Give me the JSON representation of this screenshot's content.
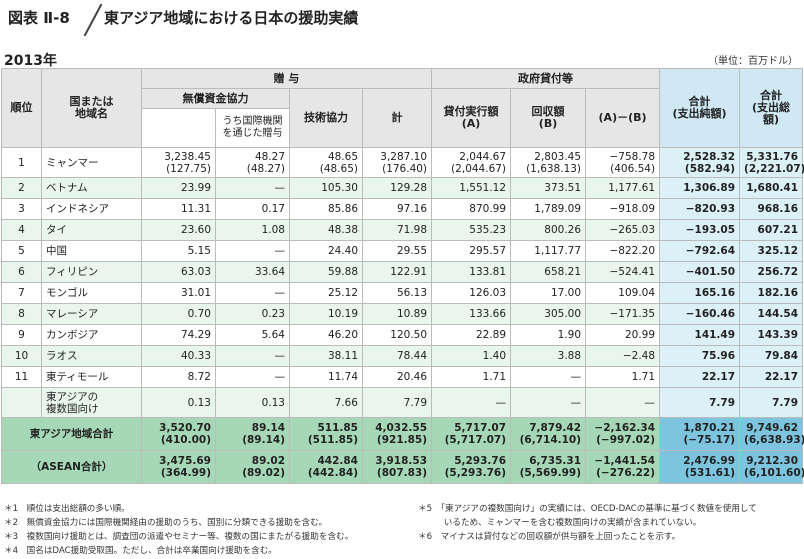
{
  "header": {
    "figure_tag": "図表 Ⅱ-8",
    "title": "東アジア地域における日本の援助実績"
  },
  "year": "2013年",
  "unit": "（単位：百万ドル）",
  "columns": {
    "rank": "順位",
    "country": "国または\n地域名",
    "grant_group": "贈 与",
    "loan_group": "政府貸付等",
    "grant_aid": "無償資金協力",
    "via_intl": "うち国際機関\nを通じた贈与",
    "tech": "技術協力",
    "total": "計",
    "loan_exec": "貸付実行額\n(A)",
    "recovery": "回収額\n(B)",
    "a_minus_b": "(A)－(B)",
    "net": "合計\n(支出純額)",
    "gross": "合計\n(支出総額)"
  },
  "rows": [
    {
      "rank": "1",
      "country": "ミャンマー",
      "grant_aid": "3,238.45\n(127.75)",
      "via_intl": "48.27\n(48.27)",
      "tech": "48.65\n(48.65)",
      "total": "3,287.10\n(176.40)",
      "loan_exec": "2,044.67\n(2,044.67)",
      "recovery": "2,803.45\n(1,638.13)",
      "a_minus_b": "−758.78\n(406.54)",
      "net": "2,528.32\n(582.94)",
      "gross": "5,331.76\n(2,221.07)"
    },
    {
      "rank": "2",
      "country": "ベトナム",
      "grant_aid": "23.99",
      "via_intl": "—",
      "tech": "105.30",
      "total": "129.28",
      "loan_exec": "1,551.12",
      "recovery": "373.51",
      "a_minus_b": "1,177.61",
      "net": "1,306.89",
      "gross": "1,680.41"
    },
    {
      "rank": "3",
      "country": "インドネシア",
      "grant_aid": "11.31",
      "via_intl": "0.17",
      "tech": "85.86",
      "total": "97.16",
      "loan_exec": "870.99",
      "recovery": "1,789.09",
      "a_minus_b": "−918.09",
      "net": "−820.93",
      "gross": "968.16"
    },
    {
      "rank": "4",
      "country": "タイ",
      "grant_aid": "23.60",
      "via_intl": "1.08",
      "tech": "48.38",
      "total": "71.98",
      "loan_exec": "535.23",
      "recovery": "800.26",
      "a_minus_b": "−265.03",
      "net": "−193.05",
      "gross": "607.21"
    },
    {
      "rank": "5",
      "country": "中国",
      "grant_aid": "5.15",
      "via_intl": "—",
      "tech": "24.40",
      "total": "29.55",
      "loan_exec": "295.57",
      "recovery": "1,117.77",
      "a_minus_b": "−822.20",
      "net": "−792.64",
      "gross": "325.12"
    },
    {
      "rank": "6",
      "country": "フィリピン",
      "grant_aid": "63.03",
      "via_intl": "33.64",
      "tech": "59.88",
      "total": "122.91",
      "loan_exec": "133.81",
      "recovery": "658.21",
      "a_minus_b": "−524.41",
      "net": "−401.50",
      "gross": "256.72"
    },
    {
      "rank": "7",
      "country": "モンゴル",
      "grant_aid": "31.01",
      "via_intl": "—",
      "tech": "25.12",
      "total": "56.13",
      "loan_exec": "126.03",
      "recovery": "17.00",
      "a_minus_b": "109.04",
      "net": "165.16",
      "gross": "182.16"
    },
    {
      "rank": "8",
      "country": "マレーシア",
      "grant_aid": "0.70",
      "via_intl": "0.23",
      "tech": "10.19",
      "total": "10.89",
      "loan_exec": "133.66",
      "recovery": "305.00",
      "a_minus_b": "−171.35",
      "net": "−160.46",
      "gross": "144.54"
    },
    {
      "rank": "9",
      "country": "カンボジア",
      "grant_aid": "74.29",
      "via_intl": "5.64",
      "tech": "46.20",
      "total": "120.50",
      "loan_exec": "22.89",
      "recovery": "1.90",
      "a_minus_b": "20.99",
      "net": "141.49",
      "gross": "143.39"
    },
    {
      "rank": "10",
      "country": "ラオス",
      "grant_aid": "40.33",
      "via_intl": "—",
      "tech": "38.11",
      "total": "78.44",
      "loan_exec": "1.40",
      "recovery": "3.88",
      "a_minus_b": "−2.48",
      "net": "75.96",
      "gross": "79.84"
    },
    {
      "rank": "11",
      "country": "東ティモール",
      "grant_aid": "8.72",
      "via_intl": "—",
      "tech": "11.74",
      "total": "20.46",
      "loan_exec": "1.71",
      "recovery": "—",
      "a_minus_b": "1.71",
      "net": "22.17",
      "gross": "22.17"
    },
    {
      "rank": "",
      "country": "東アジアの\n複数国向け",
      "grant_aid": "0.13",
      "via_intl": "0.13",
      "tech": "7.66",
      "total": "7.79",
      "loan_exec": "—",
      "recovery": "—",
      "a_minus_b": "—",
      "net": "7.79",
      "gross": "7.79"
    }
  ],
  "totals": [
    {
      "label": "東アジア地域合計",
      "grant_aid": "3,520.70\n(410.00)",
      "via_intl": "89.14\n(89.14)",
      "tech": "511.85\n(511.85)",
      "total": "4,032.55\n(921.85)",
      "loan_exec": "5,717.07\n(5,717.07)",
      "recovery": "7,879.42\n(6,714.10)",
      "a_minus_b": "−2,162.34\n(−997.02)",
      "net": "1,870.21\n(−75.17)",
      "gross": "9,749.62\n(6,638.93)"
    },
    {
      "label": "（ASEAN合計）",
      "grant_aid": "3,475.69\n(364.99)",
      "via_intl": "89.02\n(89.02)",
      "tech": "442.84\n(442.84)",
      "total": "3,918.53\n(807.83)",
      "loan_exec": "5,293.76\n(5,293.76)",
      "recovery": "6,735.31\n(5,569.99)",
      "a_minus_b": "−1,441.54\n(−276.22)",
      "net": "2,476.99\n(531.61)",
      "gross": "9,212.30\n(6,101.60)"
    }
  ],
  "footnotes_left": [
    "＊1　順位は支出総額の多い順。",
    "＊2　無償資金協力には国際機関経由の援助のうち、国別に分類できる援助を含む。",
    "＊3　複数国向け援助とは、調査団の派遣やセミナー等、複数の国にまたがる援助を含む。",
    "＊4　国名はDAC援助受取国。ただし、合計は卒業国向け援助を含む。"
  ],
  "footnotes_right": [
    "＊5　「東アジアの複数国向け」の実績には、OECD-DACの基準に基づく数値を使用して",
    "　　　いるため、ミャンマーを含む複数国向けの実績が含まれていない。",
    "＊6　マイナスは貸付などの回収額が供与額を上回ったことを示す。"
  ]
}
